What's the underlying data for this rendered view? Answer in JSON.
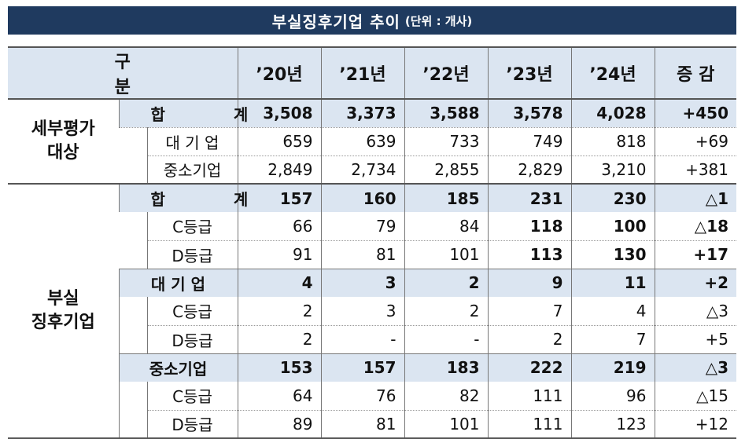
{
  "title": {
    "main": "부실징후기업 추이",
    "unit": "(단위 : 개사)"
  },
  "header": {
    "category": "구 분",
    "years": [
      "’20년",
      "’21년",
      "’22년",
      "’23년",
      "’24년"
    ],
    "change": "증 감"
  },
  "section1": {
    "group_label_line1": "세부평가",
    "group_label_line2": "대상",
    "rows": [
      {
        "label": "합 계",
        "values": [
          "3,508",
          "3,373",
          "3,588",
          "3,578",
          "4,028"
        ],
        "change": "+450"
      },
      {
        "label": "대 기 업",
        "values": [
          "659",
          "639",
          "733",
          "749",
          "818"
        ],
        "change": "+69"
      },
      {
        "label": "중소기업",
        "values": [
          "2,849",
          "2,734",
          "2,855",
          "2,829",
          "3,210"
        ],
        "change": "+381"
      }
    ]
  },
  "section2": {
    "group_label_line1": "부실",
    "group_label_line2": "징후기업",
    "total": {
      "label": "합 계",
      "values": [
        "157",
        "160",
        "185",
        "231",
        "230"
      ],
      "change": "△1"
    },
    "total_c": {
      "label": "C등급",
      "values": [
        "66",
        "79",
        "84",
        "118",
        "100"
      ],
      "change": "△18"
    },
    "total_d": {
      "label": "D등급",
      "values": [
        "91",
        "81",
        "101",
        "113",
        "130"
      ],
      "change": "+17"
    },
    "large": {
      "label": "대 기 업",
      "values": [
        "4",
        "3",
        "2",
        "9",
        "11"
      ],
      "change": "+2"
    },
    "large_c": {
      "label": "C등급",
      "values": [
        "2",
        "3",
        "2",
        "7",
        "4"
      ],
      "change": "△3"
    },
    "large_d": {
      "label": "D등급",
      "values": [
        "2",
        "-",
        "-",
        "2",
        "7"
      ],
      "change": "+5"
    },
    "sme": {
      "label": "중소기업",
      "values": [
        "153",
        "157",
        "183",
        "222",
        "219"
      ],
      "change": "△3"
    },
    "sme_c": {
      "label": "C등급",
      "values": [
        "64",
        "76",
        "82",
        "111",
        "96"
      ],
      "change": "△15"
    },
    "sme_d": {
      "label": "D등급",
      "values": [
        "89",
        "81",
        "101",
        "111",
        "123"
      ],
      "change": "+12"
    }
  },
  "colors": {
    "title_bg": "#1f3a5f",
    "header_bg": "#dbe5f1",
    "total_bg": "#dbe5f1"
  }
}
